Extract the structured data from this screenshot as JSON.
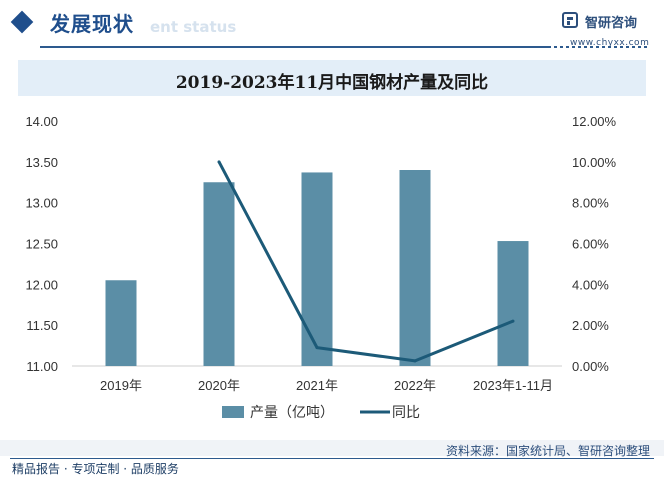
{
  "header": {
    "title": "发展现状",
    "ghost_text": "ent status",
    "logo_name": "智研咨询",
    "logo_url": "www.chyxx.com"
  },
  "chart_data": {
    "type": "bar+line",
    "title": "2019-2023年11月中国钢材产量及同比",
    "categories": [
      "2019年",
      "2020年",
      "2021年",
      "2022年",
      "2023年1-11月"
    ],
    "series": [
      {
        "name": "产量（亿吨）",
        "type": "bar",
        "axis": "left",
        "color": "#5b8ea6",
        "values": [
          12.05,
          13.25,
          13.37,
          13.4,
          12.53
        ]
      },
      {
        "name": "同比",
        "type": "line",
        "axis": "right",
        "color": "#1c5a78",
        "values": [
          null,
          10.0,
          0.9,
          0.25,
          2.2
        ]
      }
    ],
    "y_left": {
      "min": 11.0,
      "max": 14.0,
      "ticks": [
        "11.00",
        "11.50",
        "12.00",
        "12.50",
        "13.00",
        "13.50",
        "14.00"
      ]
    },
    "y_right": {
      "min": 0.0,
      "max": 12.0,
      "ticks": [
        "0.00%",
        "2.00%",
        "4.00%",
        "6.00%",
        "8.00%",
        "10.00%",
        "12.00%"
      ]
    },
    "legend_position": "bottom",
    "grid": false
  },
  "footer": {
    "source": "资料来源：国家统计局、智研咨询整理",
    "left_text": "精品报告 · 专项定制 · 品质服务"
  }
}
